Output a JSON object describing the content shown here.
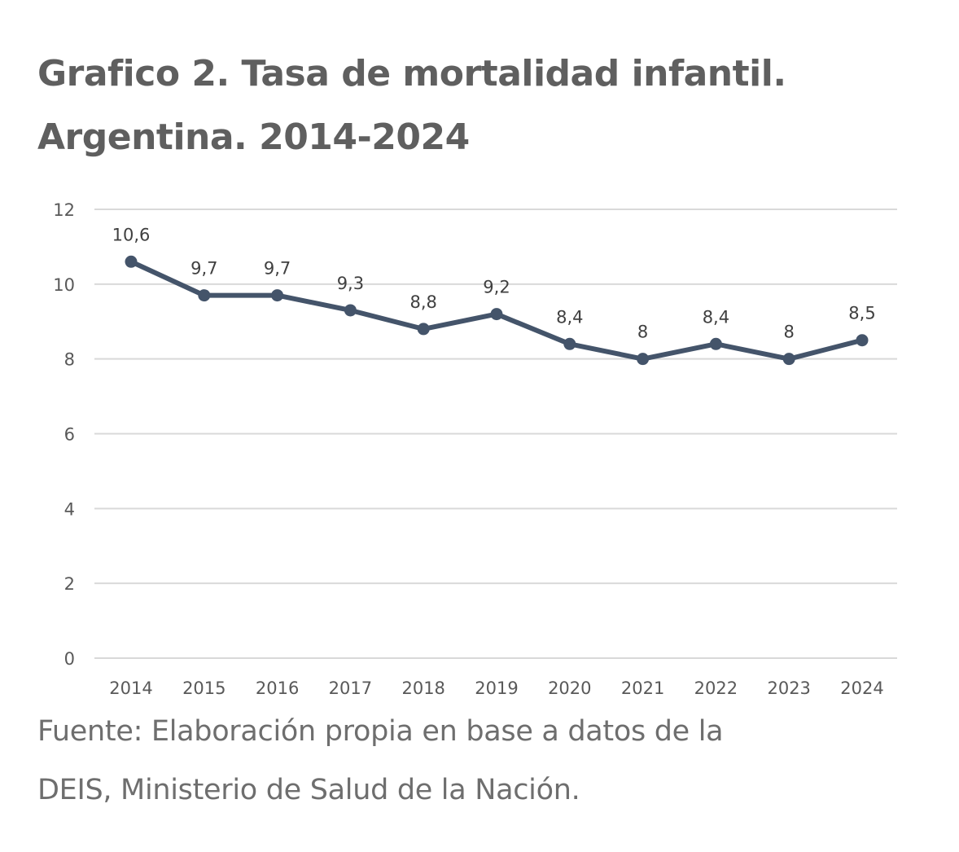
{
  "header": {
    "title_line1": "Grafico 2. Tasa de mortalidad infantil.",
    "title_line2": "Argentina. 2014-2024"
  },
  "footer": {
    "source_line1": "Fuente: Elaboración propia en base a datos de la",
    "source_line2": "DEIS, Ministerio de Salud de la Nación."
  },
  "colors": {
    "line": "#44546a",
    "grid": "#d9d9d9",
    "tick_text": "#595959",
    "label_text": "#404040"
  },
  "chart_data": {
    "type": "line",
    "title": "Grafico 2. Tasa de mortalidad infantil. Argentina. 2014-2024",
    "xlabel": "",
    "ylabel": "",
    "categories": [
      "2014",
      "2015",
      "2016",
      "2017",
      "2018",
      "2019",
      "2020",
      "2021",
      "2022",
      "2023",
      "2024"
    ],
    "series": [
      {
        "values": [
          10.6,
          9.7,
          9.7,
          9.3,
          8.8,
          9.2,
          8.4,
          8.0,
          8.4,
          8.0,
          8.5
        ],
        "labels": [
          "10,6",
          "9,7",
          "9,7",
          "9,3",
          "8,8",
          "9,2",
          "8,4",
          "8",
          "8,4",
          "8",
          "8,5"
        ]
      }
    ],
    "ylim": [
      0,
      12
    ],
    "yticks": [
      "0",
      "2",
      "4",
      "6",
      "8",
      "10",
      "12"
    ],
    "grid": true,
    "legend": "none"
  }
}
